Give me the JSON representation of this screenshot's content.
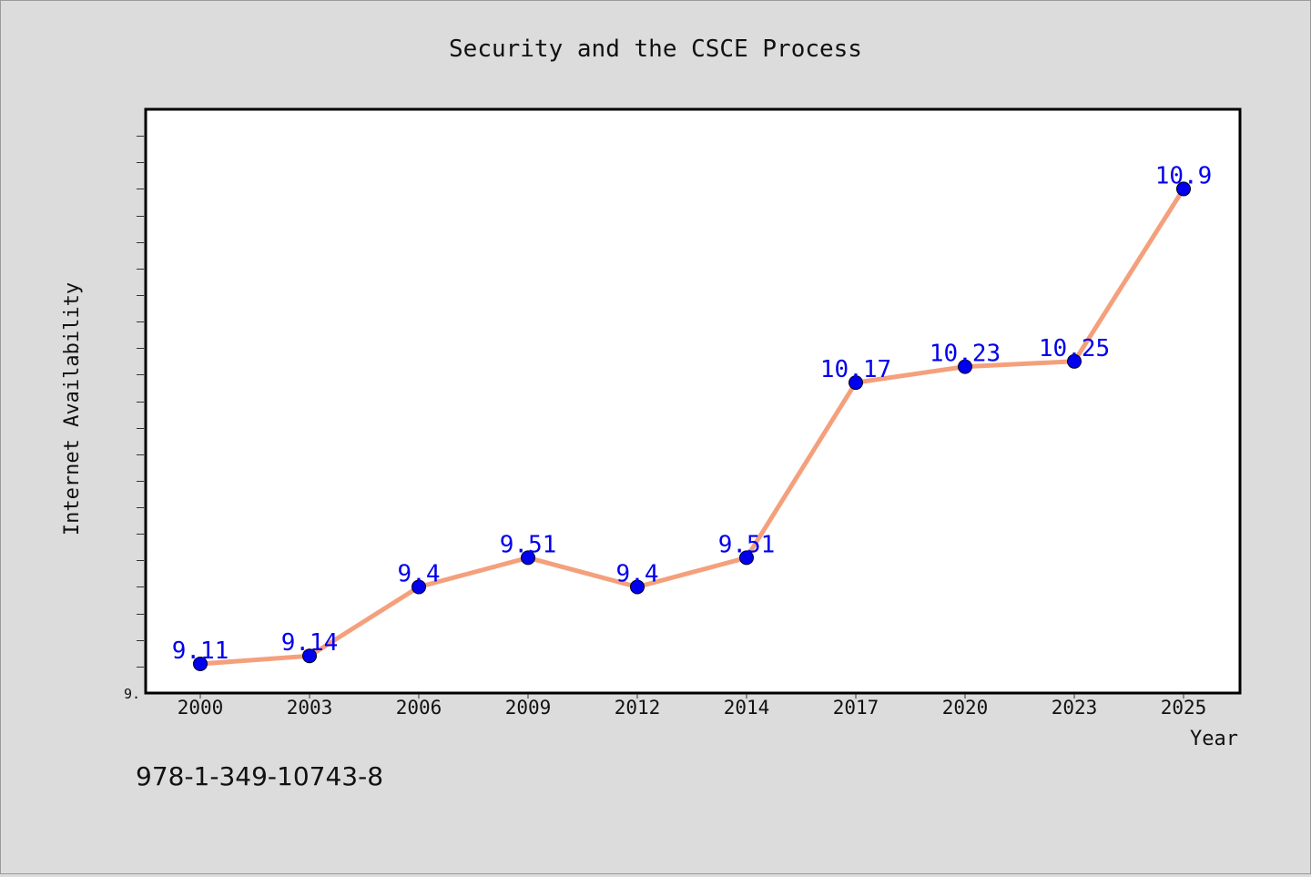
{
  "chart_data": {
    "type": "line",
    "title": "Security and the CSCE Process",
    "xlabel": "Year",
    "ylabel": "Internet Availability",
    "categories": [
      "2000",
      "2003",
      "2006",
      "2009",
      "2012",
      "2014",
      "2017",
      "2020",
      "2023",
      "2025"
    ],
    "values": [
      9.11,
      9.14,
      9.4,
      9.51,
      9.4,
      9.51,
      10.17,
      10.23,
      10.25,
      10.9
    ],
    "data_labels": [
      "9.11",
      "9.14",
      "9.4",
      "9.51",
      "9.4",
      "9.51",
      "10.17",
      "10.23",
      "10.25",
      "10.9"
    ],
    "ylim": [
      9.0,
      11.2
    ],
    "y_tick_label": "9.",
    "grid": false,
    "legend": "none",
    "colors": {
      "line": "#f4a07c",
      "marker": "#0000ee",
      "data_label": "#0000ee",
      "plot_bg": "#ffffff",
      "page_bg": "#dcdcdc"
    }
  },
  "footer": {
    "isbn": "978-1-349-10743-8"
  }
}
